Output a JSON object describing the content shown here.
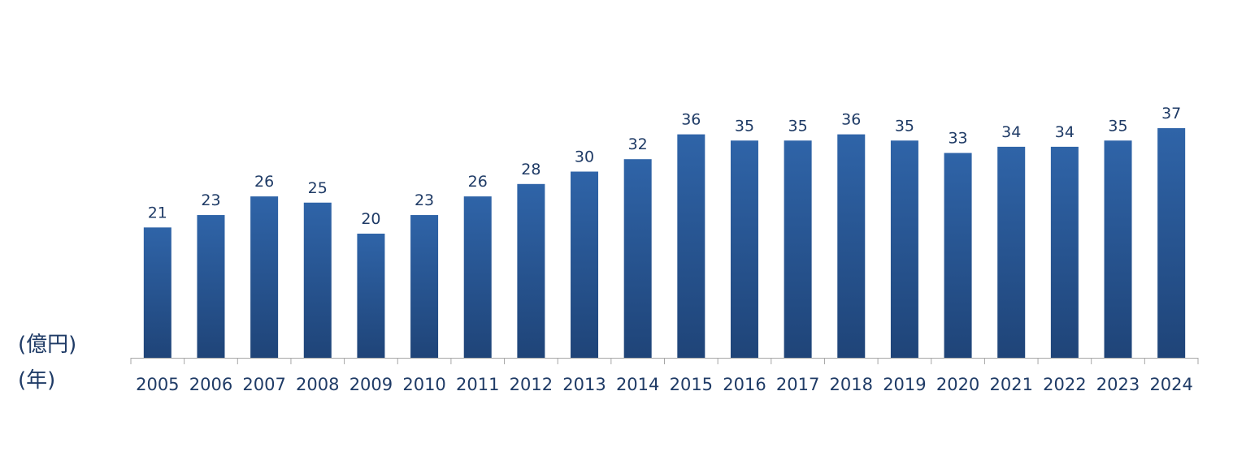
{
  "y_unit_label": "(億円)",
  "x_unit_label": "(年)",
  "colors": {
    "bar_top": "#2f64a8",
    "bar_bottom": "#1f4478",
    "text": "#1f3b66",
    "axis": "#a6a6a6"
  },
  "chart_data": {
    "type": "bar",
    "categories": [
      "2005",
      "2006",
      "2007",
      "2008",
      "2009",
      "2010",
      "2011",
      "2012",
      "2013",
      "2014",
      "2015",
      "2016",
      "2017",
      "2018",
      "2019",
      "2020",
      "2021",
      "2022",
      "2023",
      "2024"
    ],
    "values": [
      21,
      23,
      26,
      25,
      20,
      23,
      26,
      28,
      30,
      32,
      36,
      35,
      35,
      36,
      35,
      33,
      34,
      34,
      35,
      37
    ],
    "data_labels": true,
    "ylim": [
      0,
      40
    ],
    "grid": false
  }
}
